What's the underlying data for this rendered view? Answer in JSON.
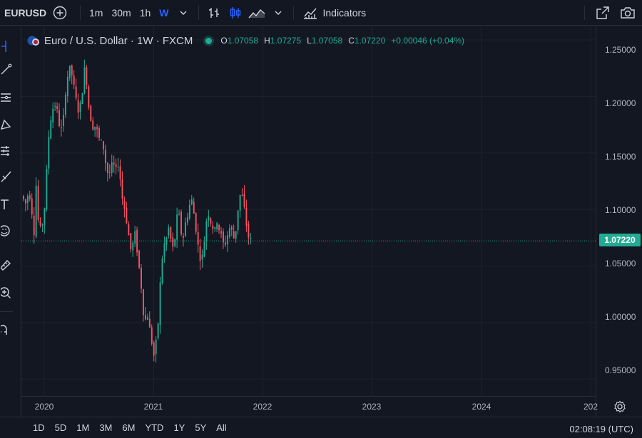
{
  "toolbar": {
    "symbol": "EURUSD",
    "intervals": [
      "1m",
      "30m",
      "1h",
      "W"
    ],
    "active_interval": "W",
    "indicators_label": "Indicators",
    "icons": [
      "plus-circle-icon",
      "chevron-down-icon",
      "bar-style-icon",
      "candle-style-icon",
      "area-style-icon",
      "chevron-down-icon",
      "indicators-icon",
      "fullscreen-icon",
      "camera-icon"
    ]
  },
  "left_tools": [
    "cursor-icon",
    "trend-line-icon",
    "fib-icon",
    "pattern-icon",
    "forecast-icon",
    "brush-icon",
    "text-icon",
    "emoji-icon",
    "ruler-icon",
    "zoom-icon",
    "magnet-icon"
  ],
  "legend": {
    "title": "Euro / U.S. Dollar · 1W · FXCM",
    "o_label": "O",
    "o_value": "1.07058",
    "h_label": "H",
    "h_value": "1.07275",
    "l_label": "L",
    "l_value": "1.07058",
    "c_label": "C",
    "c_value": "1.07220",
    "change": "+0.00046 (+0.04%)"
  },
  "colors": {
    "up": "#22ab94",
    "down": "#f7525f",
    "bg": "#131722",
    "grid": "#1e222d",
    "accent": "#2962ff"
  },
  "chart_data": {
    "type": "candlestick",
    "y_ticks": [
      "1.25000",
      "1.20000",
      "1.15000",
      "1.10000",
      "1.05000",
      "1.00000",
      "0.95000"
    ],
    "x_ticks": [
      "2020",
      "2021",
      "2022",
      "2023",
      "2024",
      "202"
    ],
    "ylim": [
      0.935,
      1.262
    ],
    "last_price": "1.07220",
    "last_price_value": 1.0722,
    "price_path": [
      [
        0.0,
        1.112
      ],
      [
        0.04,
        1.105
      ],
      [
        0.07,
        1.118
      ],
      [
        0.1,
        1.096
      ],
      [
        0.12,
        1.077
      ],
      [
        0.14,
        1.138
      ],
      [
        0.15,
        1.1
      ],
      [
        0.16,
        1.075
      ],
      [
        0.18,
        1.085
      ],
      [
        0.2,
        1.09
      ],
      [
        0.21,
        1.1
      ],
      [
        0.23,
        1.131
      ],
      [
        0.25,
        1.165
      ],
      [
        0.27,
        1.182
      ],
      [
        0.3,
        1.195
      ],
      [
        0.32,
        1.19
      ],
      [
        0.34,
        1.178
      ],
      [
        0.36,
        1.172
      ],
      [
        0.37,
        1.168
      ],
      [
        0.39,
        1.185
      ],
      [
        0.41,
        1.215
      ],
      [
        0.43,
        1.22
      ],
      [
        0.45,
        1.225
      ],
      [
        0.47,
        1.215
      ],
      [
        0.49,
        1.2
      ],
      [
        0.51,
        1.192
      ],
      [
        0.53,
        1.185
      ],
      [
        0.55,
        1.2
      ],
      [
        0.57,
        1.218
      ],
      [
        0.58,
        1.225
      ],
      [
        0.6,
        1.212
      ],
      [
        0.61,
        1.195
      ],
      [
        0.63,
        1.183
      ],
      [
        0.66,
        1.172
      ],
      [
        0.68,
        1.175
      ],
      [
        0.7,
        1.165
      ],
      [
        0.72,
        1.16
      ],
      [
        0.75,
        1.155
      ],
      [
        0.78,
        1.135
      ],
      [
        0.8,
        1.13
      ],
      [
        0.82,
        1.137
      ],
      [
        0.85,
        1.138
      ],
      [
        0.87,
        1.132
      ],
      [
        0.89,
        1.145
      ],
      [
        0.91,
        1.12
      ],
      [
        0.93,
        1.105
      ],
      [
        0.95,
        1.1
      ],
      [
        0.97,
        1.085
      ],
      [
        0.99,
        1.07
      ],
      [
        1.01,
        1.06
      ],
      [
        1.03,
        1.08
      ],
      [
        1.05,
        1.073
      ],
      [
        1.07,
        1.052
      ],
      [
        1.09,
        1.04
      ],
      [
        1.11,
        1.015
      ],
      [
        1.13,
        1.0
      ],
      [
        1.15,
        1.01
      ],
      [
        1.17,
        0.995
      ],
      [
        1.19,
        0.985
      ],
      [
        1.21,
        0.97
      ],
      [
        1.23,
        0.98
      ],
      [
        1.25,
        1.0
      ],
      [
        1.27,
        1.035
      ],
      [
        1.29,
        1.06
      ],
      [
        1.31,
        1.07
      ],
      [
        1.33,
        1.075
      ],
      [
        1.35,
        1.085
      ],
      [
        1.37,
        1.07
      ],
      [
        1.39,
        1.063
      ],
      [
        1.41,
        1.08
      ],
      [
        1.43,
        1.098
      ],
      [
        1.45,
        1.09
      ],
      [
        1.47,
        1.072
      ],
      [
        1.49,
        1.08
      ],
      [
        1.51,
        1.095
      ],
      [
        1.53,
        1.098
      ],
      [
        1.55,
        1.112
      ],
      [
        1.57,
        1.1
      ],
      [
        1.59,
        1.09
      ],
      [
        1.61,
        1.07
      ],
      [
        1.63,
        1.06
      ],
      [
        1.65,
        1.055
      ],
      [
        1.67,
        1.07
      ],
      [
        1.69,
        1.09
      ],
      [
        1.71,
        1.098
      ],
      [
        1.73,
        1.09
      ],
      [
        1.75,
        1.085
      ],
      [
        1.77,
        1.08
      ],
      [
        1.79,
        1.092
      ],
      [
        1.81,
        1.082
      ],
      [
        1.83,
        1.075
      ],
      [
        1.85,
        1.068
      ],
      [
        1.87,
        1.072
      ],
      [
        1.89,
        1.08
      ],
      [
        1.91,
        1.085
      ],
      [
        1.93,
        1.078
      ],
      [
        1.95,
        1.073
      ],
      [
        1.97,
        1.09
      ],
      [
        1.99,
        1.11
      ],
      [
        2.01,
        1.115
      ],
      [
        2.03,
        1.105
      ],
      [
        2.05,
        1.092
      ],
      [
        2.07,
        1.078
      ],
      [
        2.09,
        1.072
      ]
    ]
  },
  "bottombar": {
    "ranges": [
      "1D",
      "5D",
      "1M",
      "3M",
      "6M",
      "YTD",
      "1Y",
      "5Y",
      "All"
    ],
    "clock": "02:08:19 (UTC)"
  }
}
